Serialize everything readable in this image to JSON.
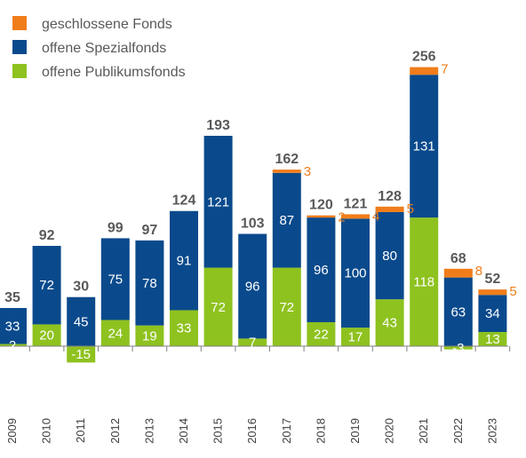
{
  "chart_data": {
    "type": "bar",
    "stacked": true,
    "title": "",
    "xlabel": "",
    "ylabel": "",
    "legend_position": "top-left",
    "grid": false,
    "categories": [
      "2009",
      "2010",
      "2011",
      "2012",
      "2013",
      "2014",
      "2015",
      "2016",
      "2017",
      "2018",
      "2019",
      "2020",
      "2021",
      "2022",
      "2023"
    ],
    "series": [
      {
        "name": "geschlossene Fonds",
        "color": "#f07d1a",
        "values": [
          0,
          0,
          0,
          0,
          0,
          0,
          0,
          0,
          3,
          2,
          4,
          5,
          7,
          8,
          5
        ],
        "labels": [
          "",
          "",
          "",
          "",
          "",
          "",
          "",
          "",
          "3",
          "2",
          "4",
          "5",
          "7",
          "8",
          "5"
        ]
      },
      {
        "name": "offene Spezialfonds",
        "color": "#0a4a8c",
        "values": [
          33,
          72,
          45,
          75,
          78,
          91,
          121,
          96,
          87,
          96,
          100,
          80,
          131,
          63,
          34
        ],
        "labels": [
          "33",
          "72",
          "45",
          "75",
          "78",
          "91",
          "121",
          "96",
          "87",
          "96",
          "100",
          "80",
          "131",
          "63",
          "34"
        ]
      },
      {
        "name": "offene Publikumsfonds",
        "color": "#8ec21f",
        "values": [
          2,
          20,
          -15,
          24,
          19,
          33,
          72,
          7,
          72,
          22,
          17,
          43,
          118,
          -3,
          13
        ],
        "labels": [
          "2",
          "20",
          "-15",
          "24",
          "19",
          "33",
          "72",
          "7",
          "72",
          "22",
          "17",
          "43",
          "118",
          "-3",
          "13"
        ]
      }
    ],
    "totals": [
      "35",
      "92",
      "30",
      "99",
      "97",
      "124",
      "193",
      "103",
      "162",
      "120",
      "121",
      "128",
      "256",
      "68",
      "52"
    ]
  }
}
